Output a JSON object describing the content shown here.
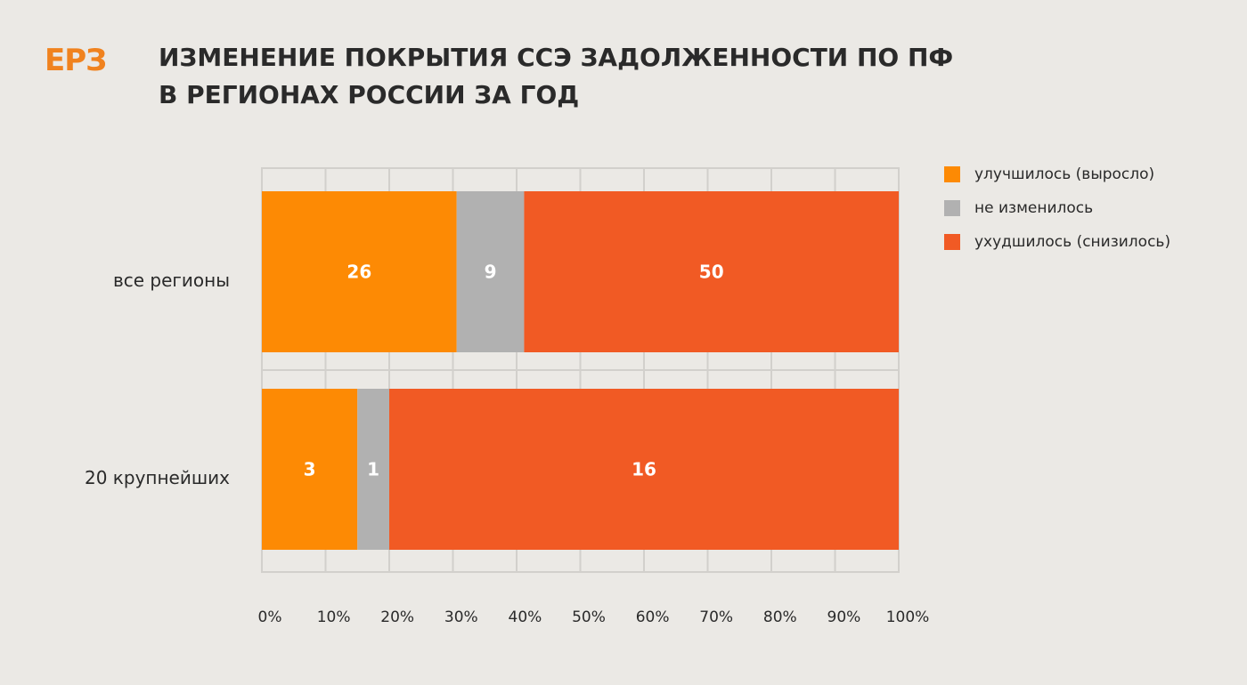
{
  "logo": "ЕРЗ",
  "title_lines": [
    "ИЗМЕНЕНИЕ ПОКРЫТИЯ ССЭ ЗАДОЛЖЕННОСТИ ПО ПФ",
    "В РЕГИОНАХ РОССИИ ЗА ГОД"
  ],
  "colors": {
    "improved": "#fd8a04",
    "unchanged": "#b1b1b1",
    "worsened": "#f15a24"
  },
  "chart_data": {
    "type": "bar",
    "orientation": "horizontal",
    "stacked": "percent",
    "title": "ИЗМЕНЕНИЕ ПОКРЫТИЯ ССЭ ЗАДОЛЖЕННОСТИ ПО ПФ В РЕГИОНАХ РОССИИ ЗА ГОД",
    "categories": [
      "все регионы",
      "20 крупнейших"
    ],
    "series": [
      {
        "name": "улучшилось (выросло)",
        "values": [
          26,
          3
        ]
      },
      {
        "name": "не изменилось",
        "values": [
          9,
          1
        ]
      },
      {
        "name": "ухудшилось (снизилось)",
        "values": [
          50,
          16
        ]
      }
    ],
    "xlim": [
      0,
      100
    ],
    "xticks": [
      "0%",
      "10%",
      "20%",
      "30%",
      "40%",
      "50%",
      "60%",
      "70%",
      "80%",
      "90%",
      "100%"
    ],
    "grid": true,
    "legend": "top-right"
  }
}
